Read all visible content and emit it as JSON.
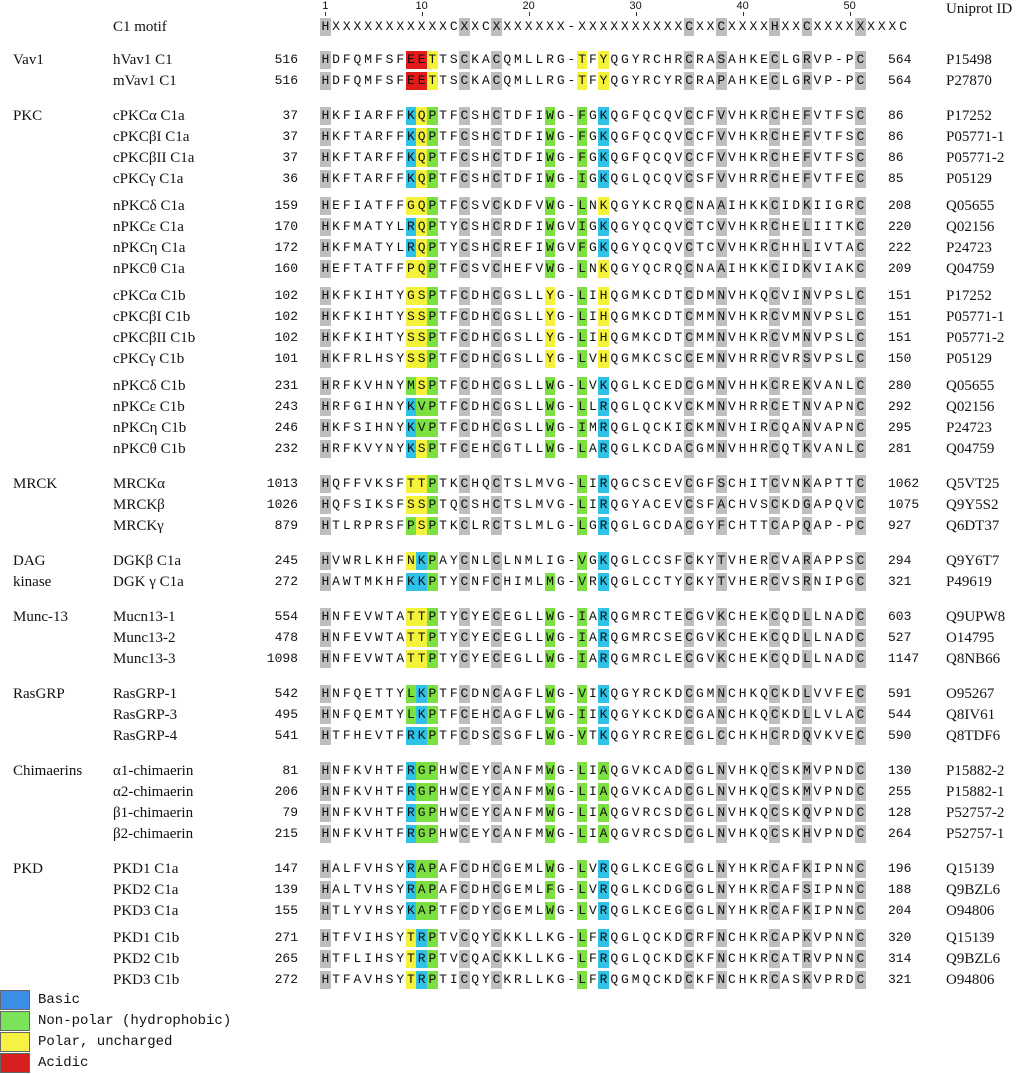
{
  "header": {
    "motif_label": "C1 motif",
    "uniprot_label": "Uniprot ID",
    "motif_seq": "HXXXXXXXXXXXCXXCXXXXXXX-XXXXXXXXXXCXXCXXXXHXXCXXXXXXXXC",
    "ticks": [
      "1",
      "10",
      "20",
      "30",
      "40",
      "50"
    ]
  },
  "colors": {
    "basic": "#2FC1E8",
    "hydrophobic": "#7BE040",
    "polar": "#F4F23A",
    "acidic": "#E21A1A",
    "conserved": "#BEBEBE"
  },
  "legend": [
    {
      "label": "Basic",
      "color": "#3C8EE6"
    },
    {
      "label": "Non-polar (hydrophobic)",
      "color": "#79E35A"
    },
    {
      "label": "Polar, uncharged",
      "color": "#F5F244"
    },
    {
      "label": "Acidic",
      "color": "#D81E1E"
    }
  ],
  "families": [
    {
      "name": "Vav1",
      "rows": [
        {
          "name": "hVav1 C1",
          "start": "516",
          "seq": "HDFQMFSFEETTSCKACQMLLRG-TFYQGYRCHRCRASAHKECLGRVP-PC",
          "end": "564",
          "id": "P15498",
          "hl": {
            "8": "A",
            "9": "A",
            "10": "P",
            "24": "P",
            "26": "P"
          }
        },
        {
          "name": "mVav1 C1",
          "start": "516",
          "seq": "HDFQMFSFEETTSCKACQMLLRG-TFYQGYRCYRCRAPAHKECLGRVP-PC",
          "end": "564",
          "id": "P27870",
          "hl": {
            "8": "A",
            "9": "A",
            "10": "P",
            "24": "P",
            "26": "P"
          }
        }
      ]
    },
    {
      "name": "PKC",
      "rows": [
        {
          "name": "cPKCα C1a",
          "start": "37",
          "seq": "HKFIARFFKQPTFCSHCTDFIWG-FGKQGFQCQVCCFVVHKRCHEFVTFSC",
          "end": "86",
          "id": "P17252",
          "hl": {
            "8": "B",
            "9": "P",
            "10": "H",
            "21": "H",
            "24": "H",
            "26": "B"
          }
        },
        {
          "name": "cPKCβI C1a",
          "start": "37",
          "seq": "HKFTARFFKQPTFCSHCTDFIWG-FGKQGFQCQVCCFVVHKRCHEFVTFSC",
          "end": "86",
          "id": "P05771-1",
          "hl": {
            "8": "B",
            "9": "P",
            "10": "H",
            "21": "H",
            "24": "H",
            "26": "B"
          }
        },
        {
          "name": "cPKCβII C1a",
          "start": "37",
          "seq": "HKFTARFFKQPTFCSHCTDFIWG-FGKQGFQCQVCCFVVHKRCHEFVTFSC",
          "end": "86",
          "id": "P05771-2",
          "hl": {
            "8": "B",
            "9": "P",
            "10": "H",
            "21": "H",
            "24": "H",
            "26": "B"
          }
        },
        {
          "name": "cPKCγ C1a",
          "start": "36",
          "seq": "HKFTARFFKQPTFCSHCTDFIWG-IGKQGLQCQVCSFVVHRRCHEFVTFEC",
          "end": "85",
          "id": "P05129",
          "hl": {
            "8": "B",
            "9": "P",
            "10": "H",
            "21": "H",
            "24": "H",
            "26": "B"
          }
        },
        {
          "name": "nPKCδ C1a",
          "start": "159",
          "seq": "HEFIATFFGQPTFCSVCKDFVWG-LNKQGYKCRQCNAAIHKKCIDKIIGRC",
          "end": "208",
          "id": "Q05655",
          "hl": {
            "8": "P",
            "9": "P",
            "10": "H",
            "21": "H",
            "24": "H",
            "26": "P"
          },
          "gap": true
        },
        {
          "name": "nPKCε C1a",
          "start": "170",
          "seq": "HKFMATYLRQPTYCSHCRDFIWGVIGKQGYQCQVCTCVVHKRCHELIITKC",
          "end": "220",
          "id": "Q02156",
          "hl": {
            "8": "B",
            "9": "P",
            "10": "H",
            "21": "H",
            "24": "H",
            "26": "B"
          }
        },
        {
          "name": "nPKCη C1a",
          "start": "172",
          "seq": "HKFMATYLRQPTYCSHCREFIWGVFGKQGYQCQVCTCVVHKRCHHLIVTAC",
          "end": "222",
          "id": "P24723",
          "hl": {
            "8": "B",
            "9": "P",
            "10": "H",
            "21": "H",
            "24": "H",
            "26": "B"
          }
        },
        {
          "name": "nPKCθ C1a",
          "start": "160",
          "seq": "HEFTATFFPQPTFCSVCHEFVWG-LNKQGYQCRQCNAAIHKKCIDKVIAKC",
          "end": "209",
          "id": "Q04759",
          "hl": {
            "8": "P",
            "9": "P",
            "10": "H",
            "21": "H",
            "24": "H",
            "26": "P"
          }
        },
        {
          "name": "cPKCα C1b",
          "start": "102",
          "seq": "HKFKIHTYGSPTFCDHCGSLLYG-LIHQGMKCDTCDMNVHKQCVINVPSLC",
          "end": "151",
          "id": "P17252",
          "hl": {
            "8": "P",
            "9": "P",
            "10": "H",
            "21": "P",
            "24": "H",
            "26": "P"
          },
          "gap": true
        },
        {
          "name": "cPKCβI C1b",
          "start": "102",
          "seq": "HKFKIHTYSSPTFCDHCGSLLYG-LIHQGMKCDTCMMNVHKRCVMNVPSLC",
          "end": "151",
          "id": "P05771-1",
          "hl": {
            "8": "P",
            "9": "P",
            "10": "H",
            "21": "P",
            "24": "H",
            "26": "P"
          }
        },
        {
          "name": "cPKCβII C1b",
          "start": "102",
          "seq": "HKFKIHTYSSPTFCDHCGSLLYG-LIHQGMKCDTCMMNVHKRCVMNVPSLC",
          "end": "151",
          "id": "P05771-2",
          "hl": {
            "8": "P",
            "9": "P",
            "10": "H",
            "21": "P",
            "24": "H",
            "26": "P"
          }
        },
        {
          "name": "cPKCγ C1b",
          "start": "101",
          "seq": "HKFRLHSYSSPTFCDHCGSLLYG-LVHQGMKCSCCEMNVHRRCVRSVPSLC",
          "end": "150",
          "id": "P05129",
          "hl": {
            "8": "P",
            "9": "P",
            "10": "H",
            "21": "P",
            "24": "H",
            "26": "P"
          }
        },
        {
          "name": "nPKCδ C1b",
          "start": "231",
          "seq": "HRFKVHNYMSPTFCDHCGSLLWG-LVKQGLKCEDCGMNVHHKCREKVANLC",
          "end": "280",
          "id": "Q05655",
          "hl": {
            "8": "H",
            "9": "P",
            "10": "H",
            "21": "H",
            "24": "H",
            "26": "B"
          },
          "gap": true
        },
        {
          "name": "nPKCε C1b",
          "start": "243",
          "seq": "HRFGIHNYKVPTFCDHCGSLLWG-LLRQGLQCKVCKMNVHRRCETNVAPNC",
          "end": "292",
          "id": "Q02156",
          "hl": {
            "8": "B",
            "9": "H",
            "10": "H",
            "21": "H",
            "24": "H",
            "26": "B"
          }
        },
        {
          "name": "nPKCη C1b",
          "start": "246",
          "seq": "HKFSIHNYKVPTFCDHCGSLLWG-IMRQGLQCKICKMNVHIRCQANVAPNC",
          "end": "295",
          "id": "P24723",
          "hl": {
            "8": "B",
            "9": "H",
            "10": "H",
            "21": "H",
            "24": "H",
            "26": "B"
          }
        },
        {
          "name": "nPKCθ C1b",
          "start": "232",
          "seq": "HRFKVYNYKSPTFCEHCGTLLWG-LARQGLKCDACGMNVHHRCQTKVANLC",
          "end": "281",
          "id": "Q04759",
          "hl": {
            "8": "B",
            "9": "P",
            "10": "H",
            "21": "H",
            "24": "H",
            "26": "B"
          }
        }
      ]
    },
    {
      "name": "MRCK",
      "rows": [
        {
          "name": "MRCKα",
          "start": "1013",
          "seq": "HQFFVKSFTTPTKCHQCTSLMVG-LIRQGCSCEVCGFSCHITCVNKAPTTC",
          "end": "1062",
          "id": "Q5VT25",
          "hl": {
            "8": "P",
            "9": "P",
            "10": "H",
            "24": "H",
            "26": "B"
          }
        },
        {
          "name": "MRCKβ",
          "start": "1026",
          "seq": "HQFSIKSFSSPTQCSHCTSLMVG-LIRQGYACEVCSFACHVSCKDGAPQVC",
          "end": "1075",
          "id": "Q9Y5S2",
          "hl": {
            "8": "P",
            "9": "P",
            "10": "H",
            "24": "H",
            "26": "B"
          }
        },
        {
          "name": "MRCKγ",
          "start": "879",
          "seq": "HTLRPRSFPSPTKCLRCTSLMLG-LGRQGLGCDACGYFCHTTCAPQAP-PC",
          "end": "927",
          "id": "Q6DT37",
          "hl": {
            "8": "H",
            "9": "P",
            "10": "H",
            "24": "H",
            "26": "B"
          }
        }
      ]
    },
    {
      "name": "DAG",
      "name2": "kinase",
      "rows": [
        {
          "name": "DGKβ C1a",
          "start": "245",
          "seq": "HVWRLKHFNKPAYCNLCLNMLIG-VGKQGLCCSFCKYTVHERCVARAPPSC",
          "end": "294",
          "id": "Q9Y6T7",
          "hl": {
            "8": "P",
            "9": "B",
            "10": "H",
            "24": "H",
            "26": "B"
          }
        },
        {
          "name": "DGK γ C1a",
          "start": "272",
          "seq": "HAWTMKHFKKPTYCNFCHIMLMG-VRKQGLCCTYCKYTVHERCVSRNIPGC",
          "end": "321",
          "id": "P49619",
          "hl": {
            "8": "B",
            "9": "B",
            "10": "H",
            "21": "H",
            "24": "H",
            "26": "B"
          }
        }
      ]
    },
    {
      "name": "Munc-13",
      "rows": [
        {
          "name": "Mucn13-1",
          "start": "554",
          "seq": "HNFEVWTATTPTYCYECEGLLWG-IARQGMRCTECGVKCHEKCQDLLNADC",
          "end": "603",
          "id": "Q9UPW8",
          "hl": {
            "8": "P",
            "9": "P",
            "10": "H",
            "21": "H",
            "24": "H",
            "26": "B"
          }
        },
        {
          "name": "Munc13-2",
          "start": "478",
          "seq": "HNFEVWTATTPTYCYECEGLLWG-IARQGMRCSECGVKCHEKCQDLLNADC",
          "end": "527",
          "id": "O14795",
          "hl": {
            "8": "P",
            "9": "P",
            "10": "H",
            "21": "H",
            "24": "H",
            "26": "B"
          }
        },
        {
          "name": "Munc13-3",
          "start": "1098",
          "seq": "HNFEVWTATTPTYCYECEGLLWG-IARQGMRCLECGVKCHEKCQDLLNADC",
          "end": "1147",
          "id": "Q8NB66",
          "hl": {
            "8": "P",
            "9": "P",
            "10": "H",
            "21": "H",
            "24": "H",
            "26": "B"
          }
        }
      ]
    },
    {
      "name": "RasGRP",
      "rows": [
        {
          "name": "RasGRP-1",
          "start": "542",
          "seq": "HNFQETTYLKPTFCDNCAGFLWG-VIKQGYRCKDCGMNCHKQCKDLVVFEC",
          "end": "591",
          "id": "O95267",
          "hl": {
            "8": "H",
            "9": "B",
            "10": "H",
            "21": "H",
            "24": "H",
            "26": "B"
          }
        },
        {
          "name": "RasGRP-3",
          "start": "495",
          "seq": "HNFQEMTYLKPTFCEHCAGFLWG-IIKQGYKCKDCGANCHKQCKDLLVLAC",
          "end": "544",
          "id": "Q8IV61",
          "hl": {
            "8": "H",
            "9": "B",
            "10": "H",
            "21": "H",
            "24": "H",
            "26": "B"
          }
        },
        {
          "name": "RasGRP-4",
          "start": "541",
          "seq": "HTFHEVTFRKPTFCDSCSGFLWG-VTKQGYRCRECGLCCHKHCRDQVKVEC",
          "end": "590",
          "id": "Q8TDF6",
          "hl": {
            "8": "B",
            "9": "B",
            "10": "H",
            "21": "H",
            "24": "H",
            "26": "B"
          }
        }
      ]
    },
    {
      "name": "Chimaerins",
      "rows": [
        {
          "name": "α1-chimaerin",
          "start": "81",
          "seq": "HNFKVHTFRGPHWCEYCANFMWG-LIAQGVKCADCGLNVHKQCSKMVPNDC",
          "end": "130",
          "id": "P15882-2",
          "hl": {
            "8": "B",
            "9": "H",
            "10": "H",
            "21": "H",
            "24": "H",
            "26": "H"
          }
        },
        {
          "name": "α2-chimaerin",
          "start": "206",
          "seq": "HNFKVHTFRGPHWCEYCANFMWG-LIAQGVKCADCGLNVHKQCSKMVPNDC",
          "end": "255",
          "id": "P15882-1",
          "hl": {
            "8": "B",
            "9": "H",
            "10": "H",
            "21": "H",
            "24": "H",
            "26": "H"
          }
        },
        {
          "name": "β1-chimaerin",
          "start": "79",
          "seq": "HNFKVHTFRGPHWCEYCANFMWG-LIAQGVRCSDCGLNVHKQCSKQVPNDC",
          "end": "128",
          "id": "P52757-2",
          "hl": {
            "8": "B",
            "9": "H",
            "10": "H",
            "21": "H",
            "24": "H",
            "26": "H"
          }
        },
        {
          "name": "β2-chimaerin",
          "start": "215",
          "seq": "HNFKVHTFRGPHWCEYCANFMWG-LIAQGVRCSDCGLNVHKQCSKHVPNDC",
          "end": "264",
          "id": "P52757-1",
          "hl": {
            "8": "B",
            "9": "H",
            "10": "H",
            "21": "H",
            "24": "H",
            "26": "H"
          }
        }
      ]
    },
    {
      "name": "PKD",
      "rows": [
        {
          "name": "PKD1 C1a",
          "start": "147",
          "seq": "HALFVHSYRAPAFCDHCGEMLWG-LVRQGLKCEGCGLNYHKRCAFKIPNNC",
          "end": "196",
          "id": "Q15139",
          "hl": {
            "8": "B",
            "9": "H",
            "10": "H",
            "21": "H",
            "24": "H",
            "26": "B"
          }
        },
        {
          "name": "PKD2 C1a",
          "start": "139",
          "seq": "HALTVHSYRAPAFCDHCGEMLFG-LVRQGLKCDGCGLNYHKRCAFSIPNNC",
          "end": "188",
          "id": "Q9BZL6",
          "hl": {
            "8": "B",
            "9": "H",
            "10": "H",
            "21": "H",
            "24": "H",
            "26": "B"
          }
        },
        {
          "name": "PKD3 C1a",
          "start": "155",
          "seq": "HTLYVHSYKAPTFCDYCGEMLWG-LVRQGLKCEGCGLNYHKRCAFKIPNNC",
          "end": "204",
          "id": "O94806",
          "hl": {
            "8": "B",
            "9": "H",
            "10": "H",
            "21": "H",
            "24": "H",
            "26": "B"
          }
        },
        {
          "name": "PKD1 C1b",
          "start": "271",
          "seq": "HTFVIHSYTRPTVCQYCKKLLKG-LFRQGLQCKDCRFNCHKRCAPKVPNNC",
          "end": "320",
          "id": "Q15139",
          "hl": {
            "8": "P",
            "9": "B",
            "10": "H",
            "24": "H",
            "26": "B"
          },
          "gap": true
        },
        {
          "name": "PKD2 C1b",
          "start": "265",
          "seq": "HTFLIHSYTRPTVCQACKKLLKG-LFRQGLQCKDCKFNCHKRCATRVPNNC",
          "end": "314",
          "id": "Q9BZL6",
          "hl": {
            "8": "P",
            "9": "B",
            "10": "H",
            "24": "H",
            "26": "B"
          }
        },
        {
          "name": "PKD3 C1b",
          "start": "272",
          "seq": "HTFAVHSYTRPTICQYCKRLLKG-LFRQGMQCKDCKFNCHKRCASKVPRDC",
          "end": "321",
          "id": "O94806",
          "hl": {
            "8": "P",
            "9": "B",
            "10": "H",
            "24": "H",
            "26": "B"
          }
        }
      ]
    }
  ]
}
